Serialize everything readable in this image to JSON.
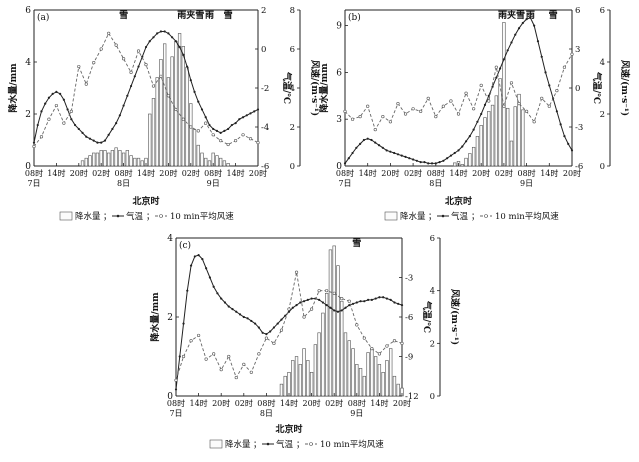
{
  "figure": {
    "legend_precip": "降水量",
    "legend_temp": "气温",
    "legend_wind": "10 min平均风速",
    "legend_sep": "；",
    "xlabel": "北京时"
  },
  "chart_data": [
    {
      "type": "bar",
      "panel_label": "(a)",
      "weather_labels": [
        {
          "text": "雪",
          "hour": 24
        },
        {
          "text": "雨夹雪",
          "hour": 42
        },
        {
          "text": "雨",
          "hour": 47
        },
        {
          "text": "雪",
          "hour": 52
        }
      ],
      "xlabel": "北京时",
      "ylabel_left": "降水量/mm",
      "ylabel_right1": "气温/℃",
      "ylabel_right2": "风速/(m·s⁻¹)",
      "xlim": [
        0,
        60
      ],
      "precip_ylim": [
        0,
        6
      ],
      "precip_ticks": [
        0,
        2,
        4,
        6
      ],
      "temp_ylim": [
        -6,
        2
      ],
      "temp_ticks": [
        -6,
        -4,
        -2,
        0,
        2
      ],
      "wind_ylim": [
        0,
        8
      ],
      "wind_ticks": [
        0,
        2,
        4,
        6,
        8
      ],
      "x_ticks": [
        0,
        6,
        12,
        18,
        24,
        30,
        36,
        42,
        48,
        54,
        60
      ],
      "x_tick_labels": [
        "08时",
        "14时",
        "20时",
        "02时",
        "08时",
        "14时",
        "20时",
        "02时",
        "08时",
        "14时",
        "20时"
      ],
      "date_labels": [
        {
          "text": "7日",
          "hour": 0
        },
        {
          "text": "8日",
          "hour": 24
        },
        {
          "text": "9日",
          "hour": 48
        }
      ],
      "precip": {
        "x": [
          13,
          14,
          15,
          16,
          17,
          18,
          19,
          20,
          21,
          22,
          23,
          24,
          25,
          26,
          27,
          28,
          29,
          30,
          31,
          32,
          33,
          34,
          35,
          36,
          37,
          38,
          39,
          40,
          41,
          42,
          43,
          44,
          45,
          46,
          47,
          48,
          49,
          50,
          51,
          52
        ],
        "values": [
          0.2,
          0.3,
          0.4,
          0.5,
          0.5,
          0.6,
          0.6,
          0.5,
          0.6,
          0.7,
          0.6,
          0.5,
          0.6,
          0.4,
          0.3,
          0.3,
          0.2,
          0.3,
          2.0,
          2.6,
          3.4,
          4.1,
          4.7,
          3.4,
          4.2,
          4.8,
          5.1,
          4.6,
          3.8,
          2.4,
          1.4,
          0.8,
          0.5,
          0.3,
          0.2,
          0.5,
          0.4,
          0.3,
          0.2,
          0.1
        ]
      },
      "temp": {
        "x": [
          0,
          1,
          2,
          3,
          4,
          5,
          6,
          7,
          8,
          9,
          10,
          11,
          12,
          13,
          14,
          15,
          16,
          17,
          18,
          19,
          20,
          21,
          22,
          23,
          24,
          25,
          26,
          27,
          28,
          29,
          30,
          31,
          32,
          33,
          34,
          35,
          36,
          37,
          38,
          39,
          40,
          41,
          42,
          43,
          44,
          45,
          46,
          47,
          48,
          49,
          50,
          51,
          52,
          53,
          54,
          55,
          56,
          57,
          58,
          59,
          60
        ],
        "values": [
          -4.8,
          -3.9,
          -3.2,
          -2.8,
          -2.5,
          -2.3,
          -2.2,
          -2.3,
          -2.6,
          -3.1,
          -3.6,
          -3.9,
          -4.1,
          -4.3,
          -4.5,
          -4.6,
          -4.7,
          -4.8,
          -4.8,
          -4.7,
          -4.4,
          -4.1,
          -3.8,
          -3.4,
          -2.9,
          -2.4,
          -1.9,
          -1.4,
          -0.9,
          -0.4,
          0.1,
          0.4,
          0.6,
          0.8,
          0.9,
          0.9,
          0.8,
          0.6,
          0.4,
          0.1,
          -0.3,
          -0.9,
          -1.6,
          -2.2,
          -2.7,
          -3.1,
          -3.5,
          -3.9,
          -4.1,
          -4.2,
          -4.3,
          -4.2,
          -4.1,
          -3.9,
          -3.8,
          -3.6,
          -3.5,
          -3.4,
          -3.3,
          -3.2,
          -3.1
        ]
      },
      "wind": {
        "x": [
          0,
          2,
          4,
          6,
          8,
          10,
          12,
          14,
          16,
          18,
          20,
          22,
          24,
          26,
          28,
          30,
          32,
          34,
          36,
          38,
          40,
          42,
          44,
          46,
          48,
          50,
          52,
          54,
          56,
          58,
          60
        ],
        "values": [
          1.0,
          1.5,
          2.4,
          3.1,
          2.2,
          2.8,
          5.1,
          4.2,
          5.3,
          6.0,
          6.8,
          6.2,
          5.5,
          4.8,
          5.9,
          5.2,
          4.1,
          4.6,
          3.6,
          2.9,
          2.4,
          2.0,
          1.8,
          2.2,
          1.6,
          1.3,
          1.1,
          1.3,
          1.6,
          1.4,
          1.2
        ]
      }
    },
    {
      "type": "bar",
      "panel_label": "(b)",
      "weather_labels": [
        {
          "text": "雨夹雪",
          "hour": 44
        },
        {
          "text": "雨",
          "hour": 49
        },
        {
          "text": "雪",
          "hour": 55
        }
      ],
      "xlabel": "北京时",
      "ylabel_left": "降水量/mm",
      "ylabel_right1": "气温/℃",
      "ylabel_right2": "风速/(m·s⁻¹)",
      "xlim": [
        0,
        60
      ],
      "precip_ylim": [
        0,
        10
      ],
      "precip_ticks": [
        0,
        3,
        6,
        9
      ],
      "temp_ylim": [
        -6,
        6
      ],
      "temp_ticks": [
        -6,
        -3,
        0,
        3,
        6
      ],
      "wind_ylim": [
        0,
        6
      ],
      "wind_ticks": [
        0,
        2,
        4,
        6
      ],
      "x_ticks": [
        0,
        6,
        12,
        18,
        24,
        30,
        36,
        42,
        48,
        54,
        60
      ],
      "x_tick_labels": [
        "08时",
        "14时",
        "20时",
        "02时",
        "08时",
        "14时",
        "20时",
        "02时",
        "08时",
        "14时",
        "20时"
      ],
      "date_labels": [
        {
          "text": "7日",
          "hour": 0
        },
        {
          "text": "8日",
          "hour": 24
        },
        {
          "text": "9日",
          "hour": 48
        }
      ],
      "precip": {
        "x": [
          29,
          30,
          31,
          32,
          33,
          34,
          35,
          36,
          37,
          38,
          39,
          40,
          41,
          42,
          43,
          44,
          45,
          46,
          47
        ],
        "values": [
          0.2,
          0.3,
          0.1,
          0.5,
          0.8,
          1.2,
          1.9,
          2.6,
          3.1,
          3.5,
          3.9,
          4.5,
          5.6,
          9.2,
          3.7,
          1.6,
          3.8,
          4.6,
          3.6
        ]
      },
      "temp": {
        "x": [
          0,
          1,
          2,
          3,
          4,
          5,
          6,
          7,
          8,
          9,
          10,
          11,
          12,
          13,
          14,
          15,
          16,
          17,
          18,
          19,
          20,
          21,
          22,
          23,
          24,
          25,
          26,
          27,
          28,
          29,
          30,
          31,
          32,
          33,
          34,
          35,
          36,
          37,
          38,
          39,
          40,
          41,
          42,
          43,
          44,
          45,
          46,
          47,
          48,
          49,
          50,
          51,
          52,
          53,
          54,
          55,
          56,
          57,
          58,
          59,
          60
        ],
        "values": [
          -5.8,
          -5.4,
          -5.0,
          -4.6,
          -4.3,
          -4.0,
          -3.9,
          -4.0,
          -4.2,
          -4.4,
          -4.6,
          -4.8,
          -4.9,
          -5.0,
          -5.1,
          -5.2,
          -5.3,
          -5.4,
          -5.5,
          -5.6,
          -5.7,
          -5.7,
          -5.8,
          -5.8,
          -5.8,
          -5.7,
          -5.6,
          -5.4,
          -5.2,
          -5.0,
          -4.8,
          -4.5,
          -4.1,
          -3.7,
          -3.2,
          -2.6,
          -2.0,
          -1.3,
          -0.6,
          0.1,
          0.8,
          1.5,
          2.2,
          2.9,
          3.5,
          4.1,
          4.6,
          5.0,
          5.3,
          5.4,
          4.8,
          3.6,
          2.4,
          1.2,
          0.2,
          -0.8,
          -1.8,
          -2.8,
          -3.7,
          -4.3,
          -4.8
        ]
      },
      "wind": {
        "x": [
          0,
          2,
          4,
          6,
          8,
          10,
          12,
          14,
          16,
          18,
          20,
          22,
          24,
          26,
          28,
          30,
          32,
          34,
          36,
          38,
          40,
          42,
          44,
          46,
          48,
          50,
          52,
          54,
          56,
          58,
          60
        ],
        "values": [
          2.1,
          1.8,
          1.9,
          2.3,
          1.4,
          1.9,
          1.7,
          2.4,
          2.0,
          2.2,
          2.1,
          2.6,
          1.9,
          2.3,
          2.5,
          2.0,
          2.8,
          2.2,
          3.1,
          2.5,
          3.8,
          2.3,
          3.2,
          2.4,
          2.1,
          1.7,
          2.6,
          2.3,
          2.9,
          3.8,
          4.3
        ]
      }
    },
    {
      "type": "bar",
      "panel_label": "(c)",
      "weather_labels": [
        {
          "text": "雪",
          "hour": 48
        }
      ],
      "xlabel": "北京时",
      "ylabel_left": "降水量/mm",
      "ylabel_right1": "气温/℃",
      "ylabel_right2": "风速/(m·s⁻¹)",
      "xlim": [
        0,
        60
      ],
      "precip_ylim": [
        0,
        4
      ],
      "precip_ticks": [
        0,
        2,
        4
      ],
      "temp_ylim": [
        -12,
        0
      ],
      "temp_ticks": [
        -12,
        -9,
        -6,
        -3
      ],
      "wind_ylim": [
        0,
        6
      ],
      "wind_ticks": [
        0,
        2,
        4,
        6
      ],
      "x_ticks": [
        0,
        6,
        12,
        18,
        24,
        30,
        36,
        42,
        48,
        54,
        60
      ],
      "x_tick_labels": [
        "08时",
        "14时",
        "20时",
        "02时",
        "08时",
        "14时",
        "20时",
        "02时",
        "08时",
        "14时",
        "20时"
      ],
      "date_labels": [
        {
          "text": "7日",
          "hour": 0
        },
        {
          "text": "8日",
          "hour": 24
        },
        {
          "text": "9日",
          "hour": 48
        }
      ],
      "precip": {
        "x": [
          28,
          29,
          30,
          31,
          32,
          33,
          34,
          35,
          36,
          37,
          38,
          39,
          40,
          41,
          42,
          43,
          44,
          45,
          46,
          47,
          48,
          49,
          50,
          51,
          52,
          53,
          54,
          55,
          56,
          57,
          58,
          59,
          60
        ],
        "values": [
          0.3,
          0.5,
          0.6,
          0.9,
          1.0,
          0.8,
          1.2,
          0.9,
          0.6,
          1.3,
          1.6,
          2.1,
          2.6,
          3.7,
          3.8,
          3.3,
          2.4,
          1.6,
          1.4,
          1.2,
          0.8,
          0.7,
          0.5,
          1.1,
          1.2,
          1.0,
          0.8,
          0.6,
          0.9,
          1.2,
          0.5,
          0.3,
          0.2
        ]
      },
      "temp": {
        "x": [
          0,
          1,
          2,
          3,
          4,
          5,
          6,
          7,
          8,
          9,
          10,
          11,
          12,
          13,
          14,
          15,
          16,
          17,
          18,
          19,
          20,
          21,
          22,
          23,
          24,
          25,
          26,
          27,
          28,
          29,
          30,
          31,
          32,
          33,
          34,
          35,
          36,
          37,
          38,
          39,
          40,
          41,
          42,
          43,
          44,
          45,
          46,
          47,
          48,
          49,
          50,
          51,
          52,
          53,
          54,
          55,
          56,
          57,
          58,
          59,
          60
        ],
        "values": [
          -11.5,
          -9.0,
          -6.5,
          -4.0,
          -2.1,
          -1.4,
          -1.3,
          -1.6,
          -2.3,
          -3.0,
          -3.7,
          -4.2,
          -4.6,
          -4.9,
          -5.2,
          -5.4,
          -5.6,
          -5.8,
          -6.0,
          -6.1,
          -6.3,
          -6.5,
          -6.8,
          -7.2,
          -7.3,
          -7.1,
          -6.8,
          -6.5,
          -6.2,
          -5.9,
          -5.6,
          -5.3,
          -5.1,
          -4.9,
          -4.8,
          -4.7,
          -4.6,
          -4.6,
          -4.7,
          -4.9,
          -5.1,
          -5.3,
          -5.5,
          -5.6,
          -5.5,
          -5.3,
          -5.1,
          -5.0,
          -4.9,
          -4.8,
          -4.8,
          -4.7,
          -4.7,
          -4.6,
          -4.5,
          -4.5,
          -4.6,
          -4.7,
          -4.9,
          -5.0,
          -5.1
        ]
      },
      "wind": {
        "x": [
          0,
          2,
          4,
          6,
          8,
          10,
          12,
          14,
          16,
          18,
          20,
          22,
          24,
          26,
          28,
          30,
          32,
          34,
          36,
          38,
          40,
          42,
          44,
          46,
          48,
          50,
          52,
          54,
          56,
          58,
          60
        ],
        "values": [
          0.6,
          1.5,
          2.1,
          2.3,
          1.4,
          1.6,
          1.0,
          1.5,
          0.7,
          1.2,
          0.9,
          1.6,
          2.2,
          2.0,
          2.5,
          3.3,
          4.7,
          3.0,
          3.3,
          4.0,
          4.0,
          3.9,
          3.7,
          3.6,
          2.7,
          2.2,
          1.8,
          1.6,
          1.9,
          2.1,
          2.0
        ]
      }
    }
  ]
}
